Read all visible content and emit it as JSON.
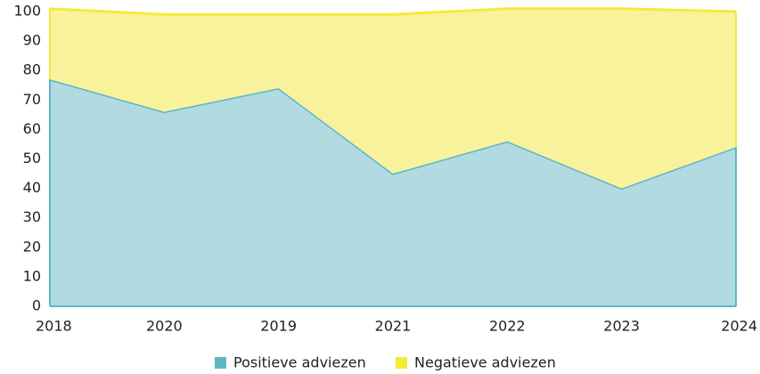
{
  "chart_data": {
    "type": "stacked_area",
    "categories": [
      "2018",
      "2020",
      "2019",
      "2021",
      "2022",
      "2023",
      "2024"
    ],
    "series": [
      {
        "name": "Positieve adviezen",
        "color": "#5fb6c6",
        "fill": "#b1dbe1",
        "values": [
          77,
          66,
          74,
          45,
          56,
          40,
          54
        ]
      },
      {
        "name": "Negatieve adviezen",
        "color": "#f5ea3a",
        "fill": "#f8f29c",
        "values": [
          24,
          33,
          25,
          54,
          45,
          61,
          46
        ]
      }
    ],
    "ylim": [
      0,
      100
    ],
    "yticks": [
      0,
      10,
      20,
      30,
      40,
      50,
      60,
      70,
      80,
      90,
      100
    ],
    "grid": false,
    "legend": "bottom"
  }
}
